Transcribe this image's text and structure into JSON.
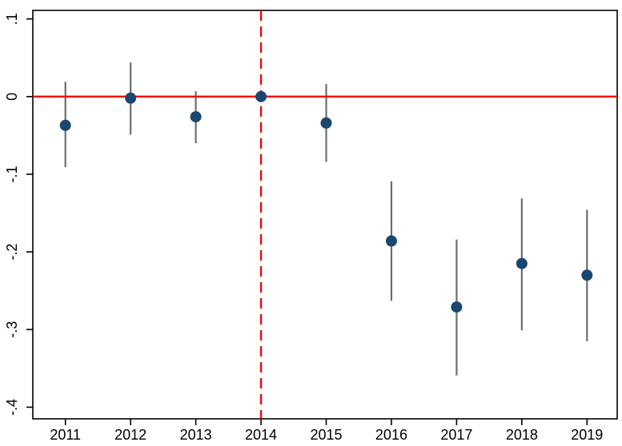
{
  "chart_data": {
    "type": "scatter",
    "subtype": "event-study-coefficient-plot",
    "title": "",
    "xlabel": "",
    "ylabel": "",
    "categories": [
      "2011",
      "2012",
      "2013",
      "2014",
      "2015",
      "2016",
      "2017",
      "2018",
      "2019"
    ],
    "points": [
      {
        "year": "2011",
        "estimate": -0.037,
        "ci_low": -0.091,
        "ci_high": 0.019
      },
      {
        "year": "2012",
        "estimate": -0.002,
        "ci_low": -0.049,
        "ci_high": 0.044
      },
      {
        "year": "2013",
        "estimate": -0.026,
        "ci_low": -0.06,
        "ci_high": 0.007
      },
      {
        "year": "2014",
        "estimate": 0,
        "ci_low": null,
        "ci_high": null,
        "reference": true
      },
      {
        "year": "2015",
        "estimate": -0.034,
        "ci_low": -0.084,
        "ci_high": 0.016
      },
      {
        "year": "2016",
        "estimate": -0.186,
        "ci_low": -0.263,
        "ci_high": -0.109
      },
      {
        "year": "2017",
        "estimate": -0.271,
        "ci_low": -0.359,
        "ci_high": -0.184
      },
      {
        "year": "2018",
        "estimate": -0.215,
        "ci_low": -0.301,
        "ci_high": -0.131
      },
      {
        "year": "2019",
        "estimate": -0.23,
        "ci_low": -0.315,
        "ci_high": -0.146
      }
    ],
    "y_ticks": [
      {
        "label": ".1",
        "value": 0.1
      },
      {
        "label": "0",
        "value": 0
      },
      {
        "label": "-.1",
        "value": -0.1
      },
      {
        "label": "-.2",
        "value": -0.2
      },
      {
        "label": "-.3",
        "value": -0.3
      },
      {
        "label": "-.4",
        "value": -0.4
      }
    ],
    "ylim": [
      -0.415,
      0.111
    ],
    "reference_lines": {
      "horizontal_y": 0,
      "vertical_x": "2014"
    },
    "grid": false,
    "legend": false,
    "colors": {
      "marker": "#1a476f",
      "ci": "#6e6e6e",
      "reference": "#f40000",
      "axis": "#000000",
      "background": "#ffffff"
    }
  }
}
